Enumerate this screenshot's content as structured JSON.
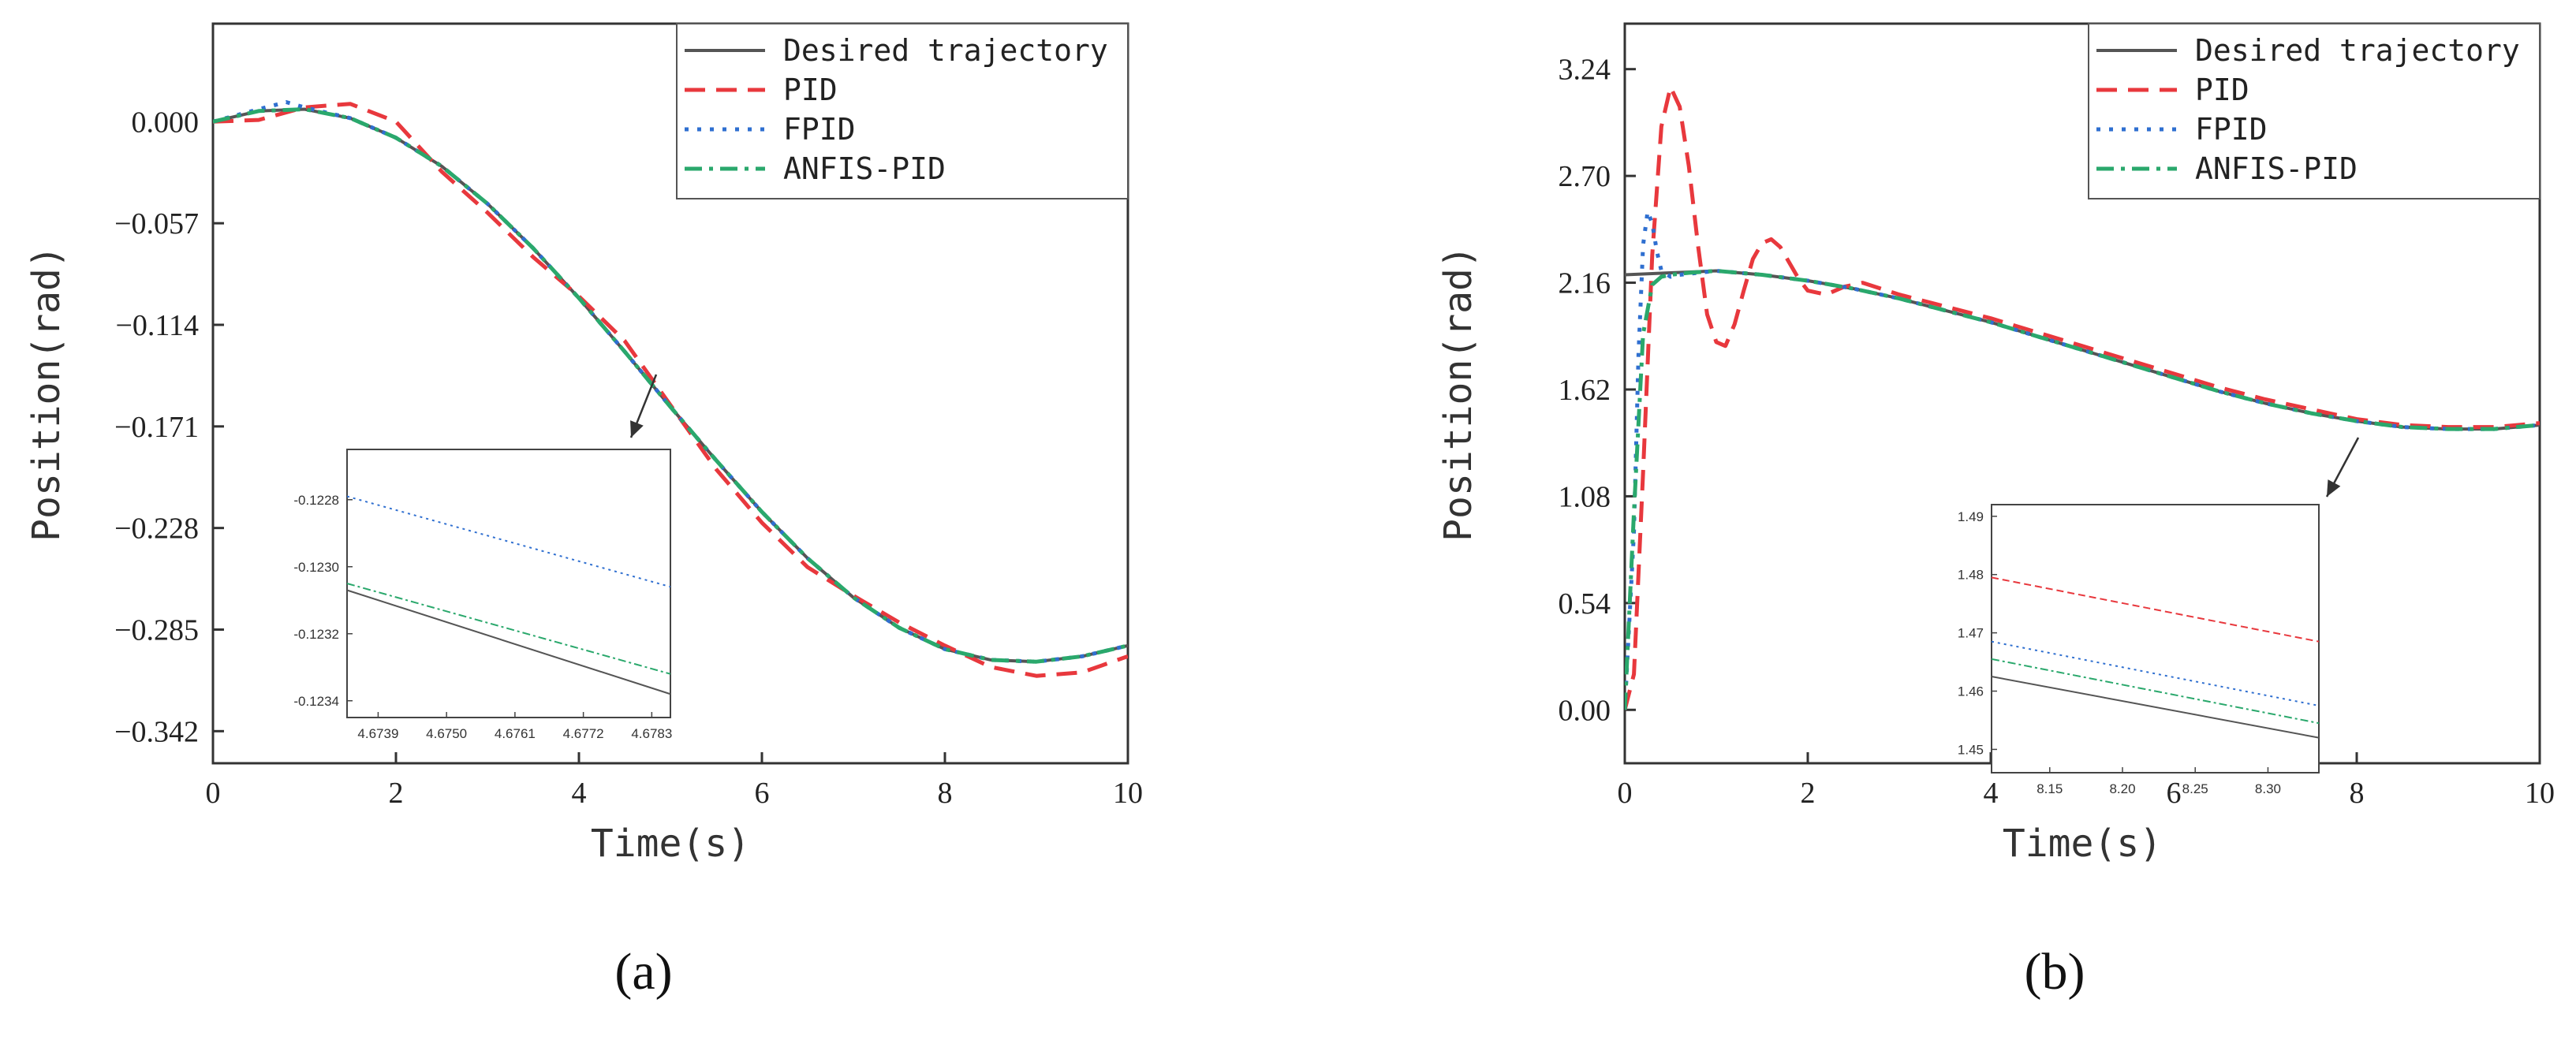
{
  "chart_data": [
    {
      "panel_label": "(a)",
      "type": "line",
      "xlabel": "Time(s)",
      "ylabel": "Position(rad)",
      "xlim": [
        0,
        10
      ],
      "ylim": [
        -0.36,
        0.055
      ],
      "xticks": [
        0,
        2,
        4,
        6,
        8,
        10
      ],
      "xtick_labels": [
        "0",
        "2",
        "4",
        "6",
        "8",
        "10"
      ],
      "yticks": [
        0.0,
        -0.057,
        -0.114,
        -0.171,
        -0.228,
        -0.285,
        -0.342
      ],
      "ytick_labels": [
        "0.000",
        "−0.057",
        "−0.114",
        "−0.171",
        "−0.228",
        "−0.285",
        "−0.342"
      ],
      "legend_position": "top-right",
      "series": [
        {
          "name": "Desired trajectory",
          "color": "#555555",
          "style": "solid",
          "x": [
            0,
            0.5,
            1,
            1.5,
            2,
            2.5,
            3,
            3.5,
            4,
            4.5,
            5,
            5.5,
            6,
            6.5,
            7,
            7.5,
            8,
            8.5,
            9,
            9.5,
            10
          ],
          "y": [
            0,
            0.006,
            0.007,
            0.002,
            -0.009,
            -0.025,
            -0.046,
            -0.071,
            -0.099,
            -0.129,
            -0.16,
            -0.19,
            -0.219,
            -0.245,
            -0.267,
            -0.284,
            -0.296,
            -0.302,
            -0.303,
            -0.3,
            -0.294
          ]
        },
        {
          "name": "PID",
          "color": "#e8383d",
          "style": "dashed",
          "x": [
            0,
            0.5,
            1,
            1.5,
            2,
            2.5,
            3,
            3.5,
            4,
            4.5,
            5,
            5.5,
            6,
            6.5,
            7,
            7.5,
            8,
            8.5,
            9,
            9.5,
            10
          ],
          "y": [
            0,
            0.001,
            0.008,
            0.01,
            0.0,
            -0.028,
            -0.051,
            -0.076,
            -0.098,
            -0.123,
            -0.159,
            -0.195,
            -0.225,
            -0.25,
            -0.266,
            -0.281,
            -0.294,
            -0.306,
            -0.311,
            -0.309,
            -0.3
          ]
        },
        {
          "name": "FPID",
          "color": "#2f6fd0",
          "style": "dotted",
          "x": [
            0,
            0.5,
            0.8,
            1,
            1.5,
            2,
            2.5,
            3,
            3.5,
            4,
            4.5,
            5,
            5.5,
            6,
            6.5,
            7,
            7.5,
            8,
            8.5,
            9,
            9.5,
            10
          ],
          "y": [
            0,
            0.007,
            0.011,
            0.008,
            0.002,
            -0.009,
            -0.025,
            -0.046,
            -0.071,
            -0.099,
            -0.129,
            -0.16,
            -0.19,
            -0.219,
            -0.245,
            -0.267,
            -0.284,
            -0.296,
            -0.302,
            -0.303,
            -0.3,
            -0.294
          ]
        },
        {
          "name": "ANFIS-PID",
          "color": "#2aa86c",
          "style": "dashdot",
          "x": [
            0,
            0.5,
            1,
            1.5,
            2,
            2.5,
            3,
            3.5,
            4,
            4.5,
            5,
            5.5,
            6,
            6.5,
            7,
            7.5,
            8,
            8.5,
            9,
            9.5,
            10
          ],
          "y": [
            0,
            0.006,
            0.007,
            0.002,
            -0.009,
            -0.025,
            -0.046,
            -0.071,
            -0.099,
            -0.129,
            -0.16,
            -0.19,
            -0.219,
            -0.245,
            -0.267,
            -0.284,
            -0.296,
            -0.302,
            -0.303,
            -0.3,
            -0.294
          ]
        }
      ],
      "inset": {
        "xlim": [
          4.6734,
          4.6786
        ],
        "ylim": [
          -0.12345,
          -0.12265
        ],
        "xticks": [
          4.6739,
          4.675,
          4.6761,
          4.6772,
          4.6783
        ],
        "xtick_labels": [
          "4.6739",
          "4.6750",
          "4.6761",
          "4.6772",
          "4.6783"
        ],
        "yticks": [
          -0.1228,
          -0.123,
          -0.1232,
          -0.1234
        ],
        "ytick_labels": [
          "-0.1228",
          "-0.1230",
          "-0.1232",
          "-0.1234"
        ],
        "series": [
          {
            "name": "FPID",
            "x": [
              4.6734,
              4.6786
            ],
            "y": [
              -0.12279,
              -0.12306
            ]
          },
          {
            "name": "ANFIS-PID",
            "x": [
              4.6734,
              4.6786
            ],
            "y": [
              -0.12305,
              -0.12332
            ]
          },
          {
            "name": "Desired trajectory",
            "x": [
              4.6734,
              4.6786
            ],
            "y": [
              -0.12307,
              -0.12338
            ]
          }
        ]
      }
    },
    {
      "panel_label": "(b)",
      "type": "line",
      "xlabel": "Time(s)",
      "ylabel": "Position(rad)",
      "xlim": [
        0,
        10
      ],
      "ylim": [
        -0.27,
        3.47
      ],
      "xticks": [
        0,
        2,
        4,
        6,
        8,
        10
      ],
      "xtick_labels": [
        "0",
        "2",
        "4",
        "6",
        "8",
        "10"
      ],
      "yticks": [
        0.0,
        0.54,
        1.08,
        1.62,
        2.16,
        2.7,
        3.24
      ],
      "ytick_labels": [
        "0.00",
        "0.54",
        "1.08",
        "1.62",
        "2.16",
        "2.70",
        "3.24"
      ],
      "legend_position": "top-right",
      "series": [
        {
          "name": "Desired trajectory",
          "color": "#555555",
          "style": "solid",
          "x": [
            0,
            0.5,
            1,
            1.5,
            2,
            2.5,
            3,
            3.5,
            4,
            4.5,
            5,
            5.5,
            6,
            6.5,
            7,
            7.5,
            8,
            8.5,
            9,
            9.5,
            10
          ],
          "y": [
            2.2,
            2.21,
            2.22,
            2.2,
            2.17,
            2.13,
            2.08,
            2.02,
            1.96,
            1.89,
            1.82,
            1.75,
            1.68,
            1.61,
            1.55,
            1.5,
            1.46,
            1.43,
            1.42,
            1.42,
            1.44
          ]
        },
        {
          "name": "PID",
          "color": "#e8383d",
          "style": "dashed",
          "x": [
            0,
            0.1,
            0.2,
            0.3,
            0.4,
            0.5,
            0.6,
            0.7,
            0.8,
            0.9,
            1.0,
            1.1,
            1.2,
            1.3,
            1.4,
            1.5,
            1.6,
            1.7,
            1.8,
            1.9,
            2.0,
            2.2,
            2.4,
            2.6,
            3,
            3.5,
            4,
            4.5,
            5,
            5.5,
            6,
            6.5,
            7,
            7.5,
            8,
            8.5,
            9,
            9.5,
            10
          ],
          "y": [
            0.0,
            0.18,
            1.2,
            2.3,
            2.95,
            3.15,
            3.05,
            2.75,
            2.35,
            2.0,
            1.86,
            1.84,
            1.95,
            2.12,
            2.28,
            2.36,
            2.38,
            2.34,
            2.26,
            2.18,
            2.12,
            2.1,
            2.14,
            2.16,
            2.1,
            2.04,
            1.98,
            1.91,
            1.84,
            1.77,
            1.7,
            1.63,
            1.57,
            1.52,
            1.47,
            1.44,
            1.43,
            1.43,
            1.45
          ]
        },
        {
          "name": "FPID",
          "color": "#2f6fd0",
          "style": "dotted",
          "x": [
            0,
            0.1,
            0.15,
            0.2,
            0.25,
            0.3,
            0.35,
            0.4,
            0.5,
            0.6,
            0.8,
            1,
            1.5,
            2,
            2.5,
            3,
            3.5,
            4,
            4.5,
            5,
            5.5,
            6,
            6.5,
            7,
            7.5,
            8,
            8.5,
            9,
            9.5,
            10
          ],
          "y": [
            0.0,
            0.9,
            1.8,
            2.35,
            2.52,
            2.46,
            2.32,
            2.22,
            2.19,
            2.2,
            2.21,
            2.22,
            2.2,
            2.17,
            2.13,
            2.08,
            2.02,
            1.96,
            1.89,
            1.82,
            1.75,
            1.68,
            1.61,
            1.55,
            1.5,
            1.46,
            1.43,
            1.42,
            1.42,
            1.44
          ]
        },
        {
          "name": "ANFIS-PID",
          "color": "#2aa86c",
          "style": "dashdot",
          "x": [
            0,
            0.1,
            0.2,
            0.3,
            0.4,
            0.5,
            0.7,
            1,
            1.5,
            2,
            2.5,
            3,
            3.5,
            4,
            4.5,
            5,
            5.5,
            6,
            6.5,
            7,
            7.5,
            8,
            8.5,
            9,
            9.5,
            10
          ],
          "y": [
            0.0,
            1.0,
            1.9,
            2.15,
            2.19,
            2.2,
            2.21,
            2.22,
            2.2,
            2.17,
            2.13,
            2.08,
            2.02,
            1.96,
            1.89,
            1.82,
            1.75,
            1.68,
            1.61,
            1.55,
            1.5,
            1.46,
            1.43,
            1.42,
            1.42,
            1.44
          ]
        }
      ],
      "inset": {
        "xlim": [
          8.11,
          8.335
        ],
        "ylim": [
          1.446,
          1.492
        ],
        "xticks": [
          8.15,
          8.2,
          8.25,
          8.3
        ],
        "xtick_labels": [
          "8.15",
          "8.20",
          "8.25",
          "8.30"
        ],
        "yticks": [
          1.45,
          1.46,
          1.47,
          1.48,
          1.49
        ],
        "ytick_labels": [
          "1.45",
          "1.46",
          "1.47",
          "1.48",
          "1.49"
        ],
        "series": [
          {
            "name": "PID",
            "x": [
              8.11,
              8.335
            ],
            "y": [
              1.4795,
              1.4685
            ]
          },
          {
            "name": "FPID",
            "x": [
              8.11,
              8.335
            ],
            "y": [
              1.4685,
              1.4575
            ]
          },
          {
            "name": "ANFIS-PID",
            "x": [
              8.11,
              8.335
            ],
            "y": [
              1.4655,
              1.4545
            ]
          },
          {
            "name": "Desired trajectory",
            "x": [
              8.11,
              8.335
            ],
            "y": [
              1.4625,
              1.452
            ]
          }
        ]
      }
    }
  ]
}
